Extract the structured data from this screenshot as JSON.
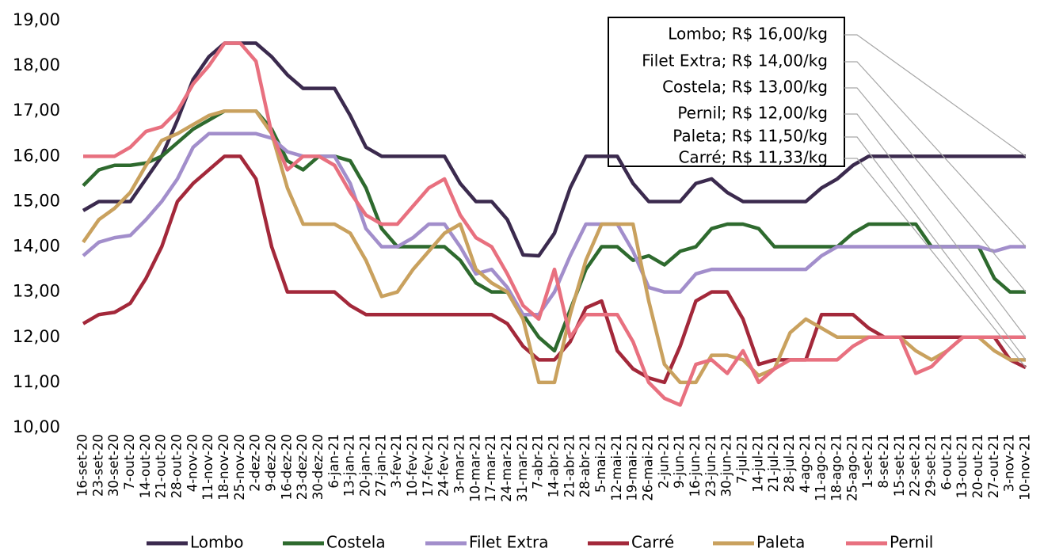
{
  "chart_data": {
    "type": "line",
    "categories": [
      "16-set-20",
      "23-set-20",
      "30-set-20",
      "7-out-20",
      "14-out-20",
      "21-out-20",
      "28-out-20",
      "4-nov-20",
      "11-nov-20",
      "18-nov-20",
      "25-nov-20",
      "2-dez-20",
      "9-dez-20",
      "16-dez-20",
      "23-dez-20",
      "30-dez-20",
      "6-jan-21",
      "13-jan-21",
      "20-jan-21",
      "27-jan-21",
      "3-fev-21",
      "10-fev-21",
      "17-fev-21",
      "24-fev-21",
      "3-mar-21",
      "10-mar-21",
      "17-mar-21",
      "24-mar-21",
      "31-mar-21",
      "7-abr-21",
      "14-abr-21",
      "21-abr-21",
      "28-abr-21",
      "5-mai-21",
      "12-mai-21",
      "19-mai-21",
      "26-mai-21",
      "2-jun-21",
      "9-jun-21",
      "16-jun-21",
      "23-jun-21",
      "30-jun-21",
      "7-jul-21",
      "14-jul-21",
      "21-jul-21",
      "28-jul-21",
      "4-ago-21",
      "11-ago-21",
      "18-ago-21",
      "25-ago-21",
      "1-set-21",
      "8-set-21",
      "15-set-21",
      "22-set-21",
      "29-set-21",
      "6-out-21",
      "13-out-21",
      "20-out-21",
      "27-out-21",
      "3-nov-21",
      "10-nov-21"
    ],
    "series": [
      {
        "name": "Lombo",
        "color": "#3b2a4e",
        "values": [
          14.8,
          15.0,
          15.0,
          15.0,
          15.5,
          16.0,
          16.8,
          17.7,
          18.2,
          18.5,
          18.5,
          18.5,
          18.2,
          17.8,
          17.5,
          17.5,
          17.5,
          16.9,
          16.2,
          16.0,
          16.0,
          16.0,
          16.0,
          16.0,
          15.4,
          15.0,
          15.0,
          14.6,
          13.82,
          13.8,
          14.3,
          15.3,
          16.0,
          16.0,
          16.0,
          15.4,
          15.0,
          15.0,
          15.0,
          15.4,
          15.5,
          15.2,
          15.0,
          15.0,
          15.0,
          15.0,
          15.0,
          15.3,
          15.5,
          15.8,
          16.0,
          16.0,
          16.0,
          16.0,
          16.0,
          16.0,
          16.0,
          16.0,
          16.0,
          16.0,
          16.0
        ]
      },
      {
        "name": "Costela",
        "color": "#2e6a2e",
        "values": [
          15.35,
          15.7,
          15.8,
          15.8,
          15.85,
          16.0,
          16.3,
          16.6,
          16.8,
          17.0,
          17.0,
          17.0,
          16.6,
          15.9,
          15.7,
          16.0,
          16.0,
          15.9,
          15.3,
          14.4,
          14.0,
          14.0,
          14.0,
          14.0,
          13.7,
          13.2,
          13.0,
          13.0,
          12.5,
          12.0,
          11.7,
          12.6,
          13.5,
          14.0,
          14.0,
          13.7,
          13.8,
          13.6,
          13.9,
          14.0,
          14.4,
          14.5,
          14.5,
          14.4,
          14.0,
          14.0,
          14.0,
          14.0,
          14.0,
          14.3,
          14.5,
          14.5,
          14.5,
          14.5,
          14.0,
          14.0,
          14.0,
          14.0,
          13.3,
          13.0,
          13.0
        ]
      },
      {
        "name": "Filet Extra",
        "color": "#a28ecb",
        "values": [
          13.8,
          14.1,
          14.2,
          14.25,
          14.6,
          15.0,
          15.5,
          16.2,
          16.5,
          16.5,
          16.5,
          16.5,
          16.4,
          16.1,
          16.0,
          16.0,
          16.0,
          15.4,
          14.4,
          14.0,
          14.0,
          14.2,
          14.5,
          14.5,
          14.0,
          13.4,
          13.5,
          13.1,
          12.5,
          12.5,
          13.0,
          13.8,
          14.5,
          14.5,
          14.5,
          13.9,
          13.1,
          13.0,
          13.0,
          13.4,
          13.5,
          13.5,
          13.5,
          13.5,
          13.5,
          13.5,
          13.5,
          13.8,
          14.0,
          14.0,
          14.0,
          14.0,
          14.0,
          14.0,
          14.0,
          14.0,
          14.0,
          14.0,
          13.9,
          14.0,
          14.0
        ]
      },
      {
        "name": "Carré",
        "color": "#a3283a",
        "values": [
          12.3,
          12.5,
          12.55,
          12.75,
          13.3,
          14.0,
          15.0,
          15.4,
          15.7,
          16.0,
          16.0,
          15.5,
          14.0,
          13.0,
          13.0,
          13.0,
          13.0,
          12.7,
          12.5,
          12.5,
          12.5,
          12.5,
          12.5,
          12.5,
          12.5,
          12.5,
          12.5,
          12.3,
          11.8,
          11.5,
          11.5,
          11.9,
          12.65,
          12.8,
          11.7,
          11.3,
          11.1,
          11.0,
          11.8,
          12.8,
          13.0,
          13.0,
          12.4,
          11.4,
          11.5,
          11.5,
          11.5,
          12.5,
          12.5,
          12.5,
          12.2,
          12.0,
          12.0,
          12.0,
          12.0,
          12.0,
          12.0,
          12.0,
          12.0,
          11.5,
          11.33
        ]
      },
      {
        "name": "Paleta",
        "color": "#c9a15e",
        "values": [
          14.1,
          14.6,
          14.85,
          15.2,
          15.8,
          16.35,
          16.5,
          16.7,
          16.9,
          17.0,
          17.0,
          17.0,
          16.5,
          15.3,
          14.5,
          14.5,
          14.5,
          14.3,
          13.7,
          12.9,
          13.0,
          13.5,
          13.9,
          14.3,
          14.5,
          13.5,
          13.2,
          13.0,
          12.4,
          11.0,
          11.0,
          12.5,
          13.7,
          14.5,
          14.5,
          14.5,
          12.8,
          11.4,
          11.0,
          11.0,
          11.6,
          11.6,
          11.5,
          11.15,
          11.3,
          12.1,
          12.4,
          12.2,
          12.0,
          12.0,
          12.0,
          12.0,
          12.0,
          11.7,
          11.5,
          11.7,
          12.0,
          12.0,
          11.7,
          11.5,
          11.5
        ]
      },
      {
        "name": "Pernil",
        "color": "#e8707f",
        "values": [
          16.0,
          16.0,
          16.0,
          16.2,
          16.55,
          16.65,
          17.0,
          17.6,
          18.0,
          18.5,
          18.5,
          18.1,
          16.5,
          15.7,
          16.0,
          16.0,
          15.8,
          15.2,
          14.7,
          14.5,
          14.5,
          14.9,
          15.3,
          15.5,
          14.7,
          14.2,
          14.0,
          13.4,
          12.7,
          12.4,
          13.5,
          12.0,
          12.5,
          12.5,
          12.5,
          11.9,
          11.0,
          10.65,
          10.5,
          11.4,
          11.5,
          11.2,
          11.7,
          11.0,
          11.3,
          11.5,
          11.5,
          11.5,
          11.5,
          11.8,
          12.0,
          12.0,
          12.0,
          11.2,
          11.35,
          11.7,
          12.0,
          12.0,
          12.0,
          12.0,
          12.0
        ]
      }
    ],
    "ylim": [
      10,
      19
    ],
    "yticks": [
      {
        "value": 10,
        "label": "10,00"
      },
      {
        "value": 11,
        "label": "11,00"
      },
      {
        "value": 12,
        "label": "12,00"
      },
      {
        "value": 13,
        "label": "13,00"
      },
      {
        "value": 14,
        "label": "14,00"
      },
      {
        "value": 15,
        "label": "15,00"
      },
      {
        "value": 16,
        "label": "16,00"
      },
      {
        "value": 17,
        "label": "17,00"
      },
      {
        "value": 18,
        "label": "18,00"
      },
      {
        "value": 19,
        "label": "19,00"
      }
    ],
    "annotations": [
      "Lombo; R$ 16,00/kg",
      "Filet Extra; R$ 14,00/kg",
      "Costela; R$ 13,00/kg",
      "Pernil; R$ 12,00/kg",
      "Paleta; R$ 11,50/kg",
      "Carré; R$ 11,33/kg"
    ],
    "legend": "bottom"
  }
}
